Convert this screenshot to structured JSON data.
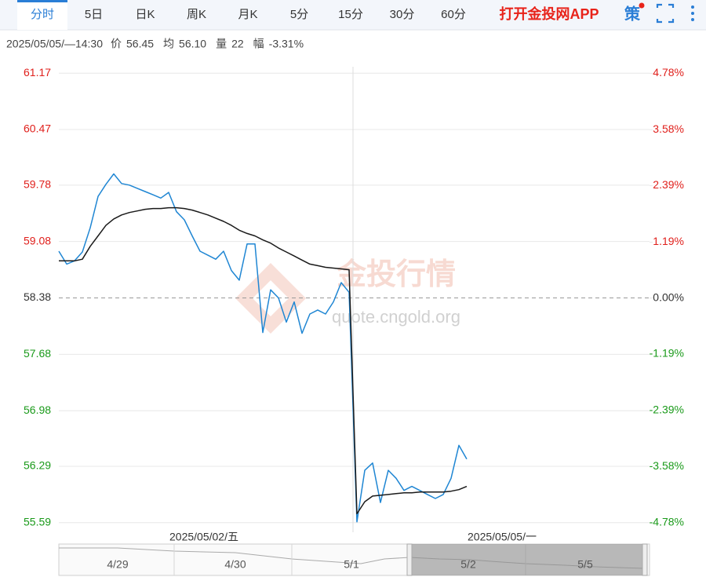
{
  "toolbar": {
    "tabs": [
      "分时",
      "5日",
      "日K",
      "周K",
      "月K",
      "5分",
      "15分",
      "30分",
      "60分"
    ],
    "active": 0,
    "app_link": "打开金投网APP",
    "strategy": "策"
  },
  "info": {
    "time": "2025/05/05/—14:30",
    "items": [
      {
        "label": "价",
        "value": "56.45"
      },
      {
        "label": "均",
        "value": "56.10"
      },
      {
        "label": "量",
        "value": "22"
      },
      {
        "label": "幅",
        "value": "-3.31%"
      }
    ]
  },
  "chart_data": {
    "type": "line",
    "categories": [
      null,
      null,
      null,
      null,
      null,
      null,
      null,
      null,
      null,
      null,
      null,
      null,
      null,
      null,
      null,
      null,
      null,
      null,
      null,
      null,
      null,
      null,
      null,
      null,
      null,
      null,
      null,
      null,
      null,
      null,
      null,
      null,
      null,
      null,
      null,
      null,
      null,
      null,
      null,
      null,
      null,
      null,
      null,
      null,
      null,
      null,
      null,
      null,
      null,
      null,
      null,
      null,
      null,
      null,
      null,
      null,
      null,
      null,
      null,
      null,
      null,
      null,
      null,
      null,
      null,
      null,
      null,
      null,
      null,
      null,
      null,
      null,
      null,
      null,
      null,
      null
    ],
    "series": [
      {
        "color": "#1f86d3",
        "values": [
          58.96,
          58.8,
          58.84,
          58.95,
          59.25,
          59.64,
          59.79,
          59.92,
          59.8,
          59.78,
          59.74,
          59.7,
          59.66,
          59.62,
          59.69,
          59.45,
          59.35,
          59.15,
          58.96,
          58.91,
          58.86,
          58.96,
          58.72,
          58.6,
          59.05,
          59.05,
          57.95,
          58.48,
          58.38,
          58.08,
          58.33,
          57.94,
          58.18,
          58.23,
          58.18,
          58.33,
          58.57,
          58.45,
          55.6,
          56.24,
          56.33,
          55.84,
          56.24,
          56.14,
          55.99,
          56.04,
          55.99,
          55.94,
          55.89,
          55.94,
          56.14,
          56.55,
          56.38,
          null,
          null,
          null,
          null,
          null,
          null,
          null,
          null,
          null,
          null,
          null,
          null,
          null,
          null,
          null,
          null,
          null,
          null,
          null,
          null,
          null,
          null,
          null
        ]
      },
      {
        "color": "#1a1a1a",
        "values": [
          58.84,
          58.84,
          58.84,
          58.86,
          59.02,
          59.15,
          59.28,
          59.36,
          59.41,
          59.44,
          59.46,
          59.48,
          59.49,
          59.49,
          59.5,
          59.5,
          59.49,
          59.47,
          59.44,
          59.41,
          59.37,
          59.33,
          59.28,
          59.22,
          59.18,
          59.15,
          59.1,
          59.06,
          59.0,
          58.95,
          58.9,
          58.85,
          58.8,
          58.78,
          58.76,
          58.75,
          58.74,
          58.73,
          55.7,
          55.85,
          55.92,
          55.93,
          55.94,
          55.95,
          55.96,
          55.96,
          55.97,
          55.97,
          55.97,
          55.97,
          55.98,
          56.0,
          56.04,
          null,
          null,
          null,
          null,
          null,
          null,
          null,
          null,
          null,
          null,
          null,
          null,
          null,
          null,
          null,
          null,
          null,
          null,
          null,
          null,
          null,
          null,
          null
        ]
      }
    ],
    "ylim": [
      55.5,
      61.25
    ],
    "yticks": [
      61.17,
      60.47,
      59.78,
      59.08,
      58.38,
      57.68,
      56.98,
      56.29,
      55.59
    ],
    "y2lim": [
      -4.93,
      4.92
    ],
    "y2ticks": [
      {
        "value": 4.78,
        "label": "4.78%"
      },
      {
        "value": 3.58,
        "label": "3.58%"
      },
      {
        "value": 2.39,
        "label": "2.39%"
      },
      {
        "value": 1.19,
        "label": "1.19%"
      },
      {
        "value": 0,
        "label": "0.00%"
      },
      {
        "value": -1.19,
        "label": "-1.19%"
      },
      {
        "value": -2.39,
        "label": "-2.39%"
      },
      {
        "value": -3.58,
        "label": "-3.58%"
      },
      {
        "value": -4.78,
        "label": "-4.78%"
      }
    ],
    "up_color": "#e0201c",
    "down_color": "#1a9a1a",
    "grid": true,
    "session_labels": [
      "2025/05/02/五",
      "2025/05/05/一"
    ]
  },
  "navigator": {
    "labels": [
      "4/29",
      "4/30",
      "5/1",
      "5/2",
      "5/5"
    ]
  },
  "watermark": {
    "title": "金投行情",
    "url": "quote.cngold.org"
  }
}
